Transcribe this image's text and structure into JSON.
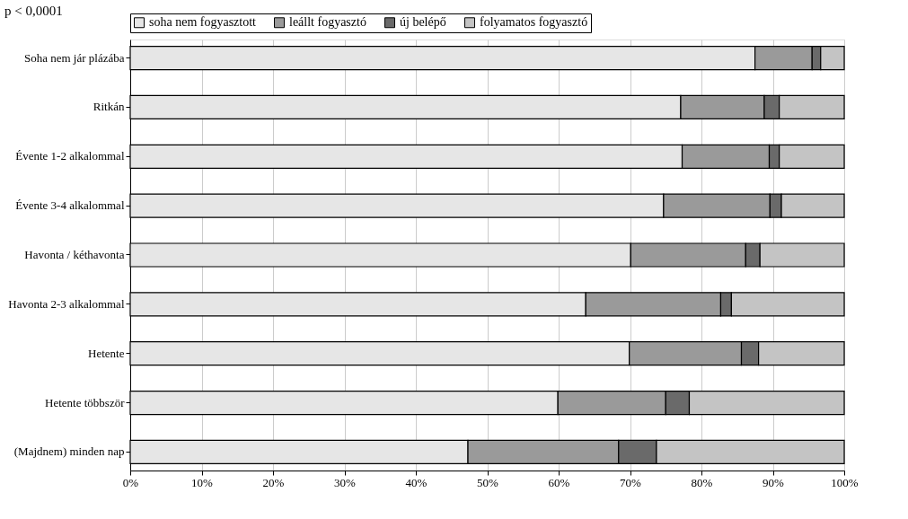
{
  "chart_data": {
    "type": "bar",
    "orientation": "horizontal",
    "stacked": true,
    "categories": [
      "Soha nem jár plázába",
      "Ritkán",
      "Évente 1-2 alkalommal",
      "Évente 3-4 alkalommal",
      "Havonta / kéthavonta",
      "Havonta 2-3 alkalommal",
      "Hetente",
      "Hetente többször",
      "(Majdnem) minden nap"
    ],
    "series": [
      {
        "name": "soha nem fogyasztott",
        "color": "#e6e6e6",
        "values": [
          87.5,
          77.1,
          77.3,
          74.7,
          70.1,
          63.8,
          69.9,
          59.9,
          47.3
        ]
      },
      {
        "name": "leállt fogyasztó",
        "color": "#9a9a9a",
        "values": [
          8.0,
          11.7,
          12.2,
          14.9,
          16.1,
          18.9,
          15.7,
          15.1,
          21.1
        ]
      },
      {
        "name": "új belépő",
        "color": "#6a6a6a",
        "values": [
          1.2,
          2.1,
          1.4,
          1.6,
          2.0,
          1.5,
          2.4,
          3.3,
          5.3
        ]
      },
      {
        "name": "folyamatos fogyasztó",
        "color": "#c4c4c4",
        "values": [
          3.3,
          9.1,
          9.1,
          8.8,
          11.8,
          15.8,
          12.0,
          21.7,
          26.3
        ]
      }
    ],
    "xlim": [
      0,
      100
    ],
    "xticks": [
      {
        "value": 0,
        "label": "0%"
      },
      {
        "value": 10,
        "label": "10%"
      },
      {
        "value": 20,
        "label": "20%"
      },
      {
        "value": 30,
        "label": "30%"
      },
      {
        "value": 40,
        "label": "40%"
      },
      {
        "value": 50,
        "label": "50%"
      },
      {
        "value": 60,
        "label": "60%"
      },
      {
        "value": 70,
        "label": "70%"
      },
      {
        "value": 80,
        "label": "80%"
      },
      {
        "value": 90,
        "label": "90%"
      },
      {
        "value": 100,
        "label": "100%"
      }
    ],
    "grid": "x",
    "legend": "top",
    "annotations": [
      "p < 0,0001"
    ]
  }
}
